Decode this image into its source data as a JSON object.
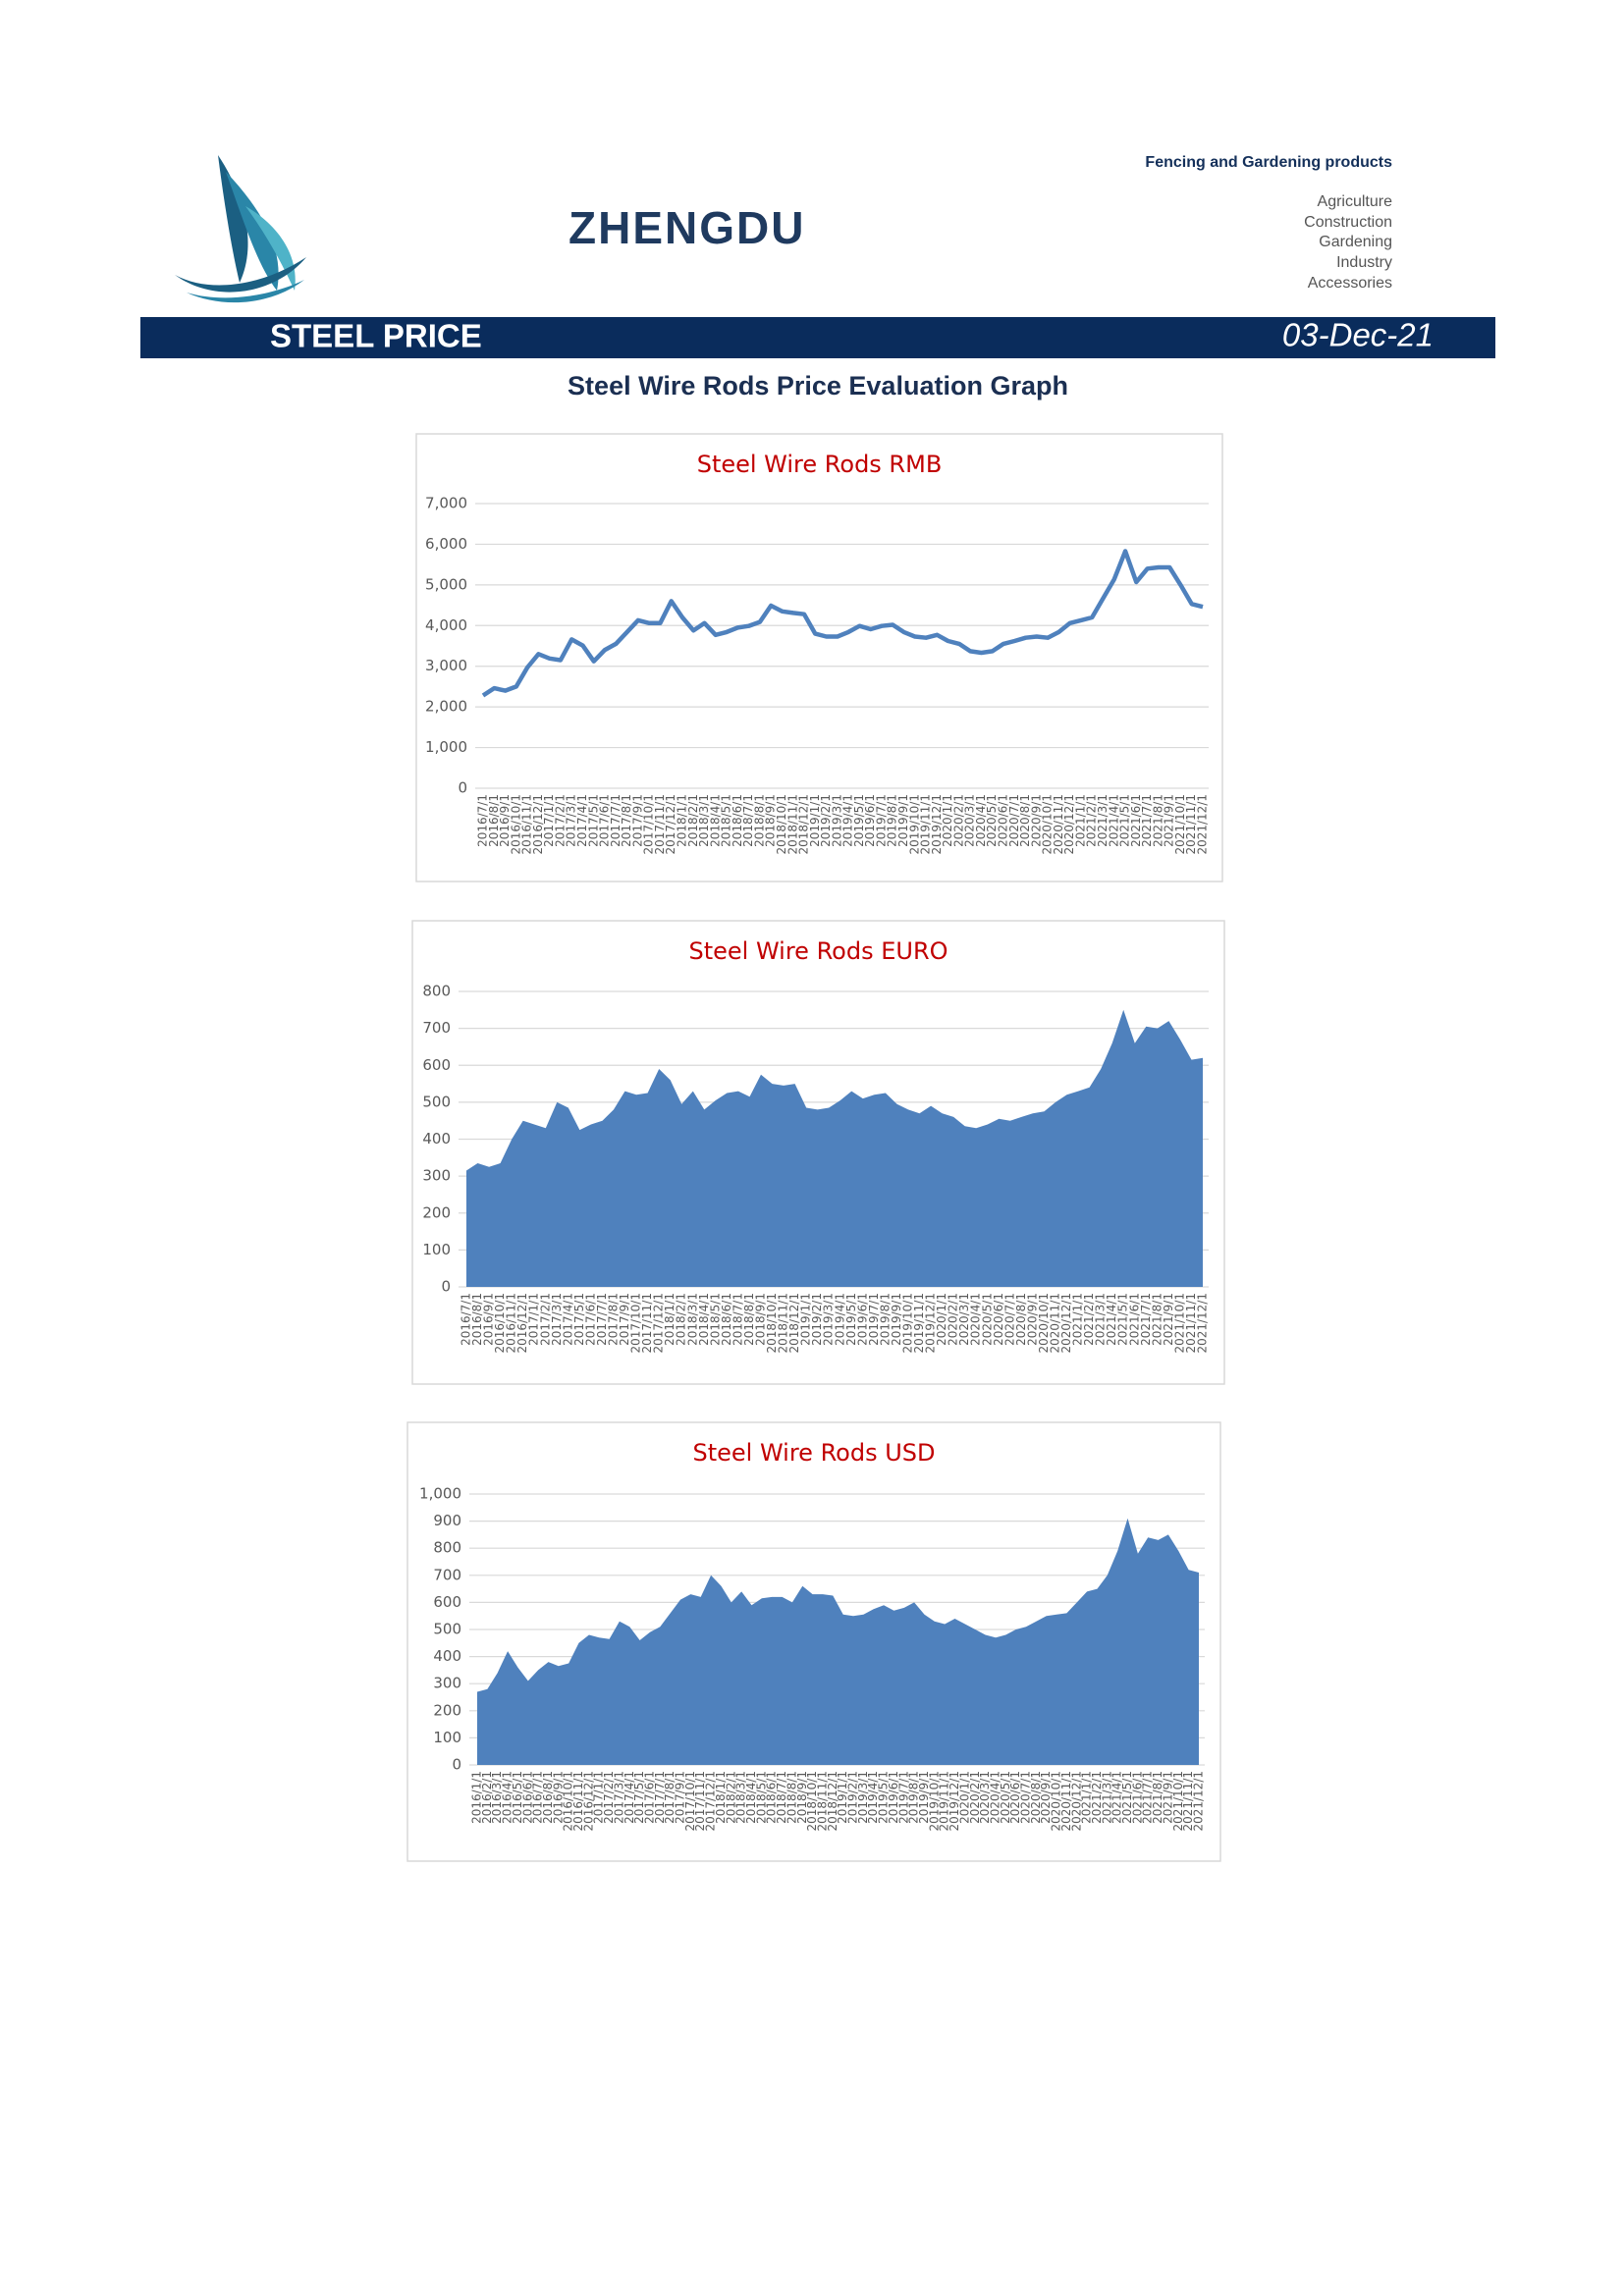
{
  "header": {
    "brand": "ZHENGDU",
    "tagline": "Fencing and Gardening products",
    "sectors": [
      "Agriculture",
      "Construction",
      "Gardening",
      "Industry",
      "Accessories"
    ]
  },
  "banner": {
    "title": "STEEL PRICE",
    "date": "03-Dec-21"
  },
  "heading": "Steel Wire Rods Price Evaluation Graph",
  "chart_data": [
    {
      "type": "line",
      "title": "Steel Wire Rods RMB",
      "color": "#4f81bd",
      "grid": true,
      "categories": [
        "2016/7/1",
        "2016/8/1",
        "2016/9/1",
        "2016/10/1",
        "2016/11/1",
        "2016/12/1",
        "2017/1/1",
        "2017/2/1",
        "2017/3/1",
        "2017/4/1",
        "2017/5/1",
        "2017/6/1",
        "2017/7/1",
        "2017/8/1",
        "2017/9/1",
        "2017/10/1",
        "2017/11/1",
        "2017/12/1",
        "2018/1/1",
        "2018/2/1",
        "2018/3/1",
        "2018/4/1",
        "2018/5/1",
        "2018/6/1",
        "2018/7/1",
        "2018/8/1",
        "2018/9/1",
        "2018/10/1",
        "2018/11/1",
        "2018/12/1",
        "2019/1/1",
        "2019/2/1",
        "2019/3/1",
        "2019/4/1",
        "2019/5/1",
        "2019/6/1",
        "2019/7/1",
        "2019/8/1",
        "2019/9/1",
        "2019/10/1",
        "2019/11/1",
        "2019/12/1",
        "2020/1/1",
        "2020/2/1",
        "2020/3/1",
        "2020/4/1",
        "2020/5/1",
        "2020/6/1",
        "2020/7/1",
        "2020/8/1",
        "2020/9/1",
        "2020/10/1",
        "2020/11/1",
        "2020/12/1",
        "2021/1/1",
        "2021/2/1",
        "2021/3/1",
        "2021/4/1",
        "2021/5/1",
        "2021/6/1",
        "2021/7/1",
        "2021/8/1",
        "2021/9/1",
        "2021/10/1",
        "2021/11/1",
        "2021/12/1"
      ],
      "values": [
        2280,
        2460,
        2400,
        2500,
        2970,
        3300,
        3190,
        3150,
        3660,
        3510,
        3120,
        3400,
        3550,
        3840,
        4130,
        4060,
        4060,
        4600,
        4200,
        3880,
        4060,
        3770,
        3840,
        3950,
        3990,
        4090,
        4490,
        4350,
        4310,
        4280,
        3800,
        3730,
        3730,
        3840,
        3990,
        3910,
        3990,
        4020,
        3840,
        3730,
        3700,
        3770,
        3620,
        3550,
        3370,
        3330,
        3370,
        3550,
        3620,
        3700,
        3730,
        3700,
        3840,
        4060,
        4130,
        4200,
        4670,
        5140,
        5830,
        5070,
        5400,
        5430,
        5430,
        5000,
        4530,
        4460
      ],
      "ylim": [
        0,
        7000
      ],
      "yticks": [
        0,
        {
          "value": 1000,
          "label": "1,000"
        },
        {
          "value": 2000,
          "label": "2,000"
        },
        {
          "value": 3000,
          "label": "3,000"
        },
        {
          "value": 4000,
          "label": "4,000"
        },
        {
          "value": 5000,
          "label": "5,000"
        },
        {
          "value": 6000,
          "label": "6,000"
        },
        {
          "value": 7000,
          "label": "7,000"
        }
      ]
    },
    {
      "type": "area",
      "title": "Steel Wire Rods EURO",
      "color": "#4f81bd",
      "grid": true,
      "categories": [
        "2016/7/1",
        "2016/8/1",
        "2016/9/1",
        "2016/10/1",
        "2016/11/1",
        "2016/12/1",
        "2017/1/1",
        "2017/2/1",
        "2017/3/1",
        "2017/4/1",
        "2017/5/1",
        "2017/6/1",
        "2017/7/1",
        "2017/8/1",
        "2017/9/1",
        "2017/10/1",
        "2017/11/1",
        "2017/12/1",
        "2018/1/1",
        "2018/2/1",
        "2018/3/1",
        "2018/4/1",
        "2018/5/1",
        "2018/6/1",
        "2018/7/1",
        "2018/8/1",
        "2018/9/1",
        "2018/10/1",
        "2018/11/1",
        "2018/12/1",
        "2019/1/1",
        "2019/2/1",
        "2019/3/1",
        "2019/4/1",
        "2019/5/1",
        "2019/6/1",
        "2019/7/1",
        "2019/8/1",
        "2019/9/1",
        "2019/10/1",
        "2019/11/1",
        "2019/12/1",
        "2020/1/1",
        "2020/2/1",
        "2020/3/1",
        "2020/4/1",
        "2020/5/1",
        "2020/6/1",
        "2020/7/1",
        "2020/8/1",
        "2020/9/1",
        "2020/10/1",
        "2020/11/1",
        "2020/12/1",
        "2021/1/1",
        "2021/2/1",
        "2021/3/1",
        "2021/4/1",
        "2021/5/1",
        "2021/6/1",
        "2021/7/1",
        "2021/8/1",
        "2021/9/1",
        "2021/10/1",
        "2021/11/1",
        "2021/12/1"
      ],
      "values": [
        315,
        335,
        325,
        335,
        400,
        450,
        440,
        430,
        500,
        485,
        425,
        440,
        450,
        480,
        530,
        520,
        525,
        590,
        560,
        495,
        530,
        480,
        505,
        525,
        530,
        515,
        575,
        550,
        545,
        550,
        485,
        480,
        485,
        505,
        530,
        510,
        520,
        525,
        495,
        480,
        470,
        490,
        470,
        460,
        435,
        430,
        440,
        455,
        450,
        460,
        470,
        475,
        500,
        520,
        530,
        540,
        590,
        660,
        750,
        660,
        705,
        700,
        720,
        670,
        615,
        620
      ],
      "ylim": [
        0,
        800
      ],
      "yticks": [
        0,
        100,
        200,
        300,
        400,
        500,
        600,
        700,
        800
      ]
    },
    {
      "type": "area",
      "title": "Steel Wire Rods USD",
      "color": "#4f81bd",
      "grid": true,
      "categories": [
        "2016/1/1",
        "2016/2/1",
        "2016/3/1",
        "2016/4/1",
        "2016/5/1",
        "2016/6/1",
        "2016/7/1",
        "2016/8/1",
        "2016/9/1",
        "2016/10/1",
        "2016/11/1",
        "2016/12/1",
        "2017/1/1",
        "2017/2/1",
        "2017/3/1",
        "2017/4/1",
        "2017/5/1",
        "2017/6/1",
        "2017/7/1",
        "2017/8/1",
        "2017/9/1",
        "2017/10/1",
        "2017/11/1",
        "2017/12/1",
        "2018/1/1",
        "2018/2/1",
        "2018/3/1",
        "2018/4/1",
        "2018/5/1",
        "2018/6/1",
        "2018/7/1",
        "2018/8/1",
        "2018/9/1",
        "2018/10/1",
        "2018/11/1",
        "2018/12/1",
        "2019/1/1",
        "2019/2/1",
        "2019/3/1",
        "2019/4/1",
        "2019/5/1",
        "2019/6/1",
        "2019/7/1",
        "2019/8/1",
        "2019/9/1",
        "2019/10/1",
        "2019/11/1",
        "2019/12/1",
        "2020/1/1",
        "2020/2/1",
        "2020/3/1",
        "2020/4/1",
        "2020/5/1",
        "2020/6/1",
        "2020/7/1",
        "2020/8/1",
        "2020/9/1",
        "2020/10/1",
        "2020/11/1",
        "2020/12/1",
        "2021/1/1",
        "2021/2/1",
        "2021/3/1",
        "2021/4/1",
        "2021/5/1",
        "2021/6/1",
        "2021/7/1",
        "2021/8/1",
        "2021/9/1",
        "2021/10/1",
        "2021/11/1",
        "2021/12/1"
      ],
      "values": [
        270,
        280,
        340,
        420,
        360,
        310,
        350,
        380,
        365,
        375,
        450,
        480,
        470,
        465,
        530,
        510,
        460,
        490,
        510,
        560,
        610,
        630,
        620,
        700,
        660,
        600,
        640,
        590,
        615,
        620,
        620,
        600,
        660,
        630,
        630,
        625,
        555,
        550,
        555,
        575,
        590,
        570,
        580,
        600,
        555,
        530,
        520,
        540,
        520,
        500,
        480,
        470,
        480,
        500,
        510,
        530,
        550,
        555,
        560,
        600,
        640,
        650,
        700,
        790,
        910,
        780,
        840,
        830,
        850,
        790,
        720,
        710
      ],
      "ylim": [
        0,
        1000
      ],
      "yticks": [
        0,
        100,
        200,
        300,
        400,
        500,
        600,
        700,
        800,
        900,
        {
          "value": 1000,
          "label": "1,000"
        }
      ]
    }
  ]
}
